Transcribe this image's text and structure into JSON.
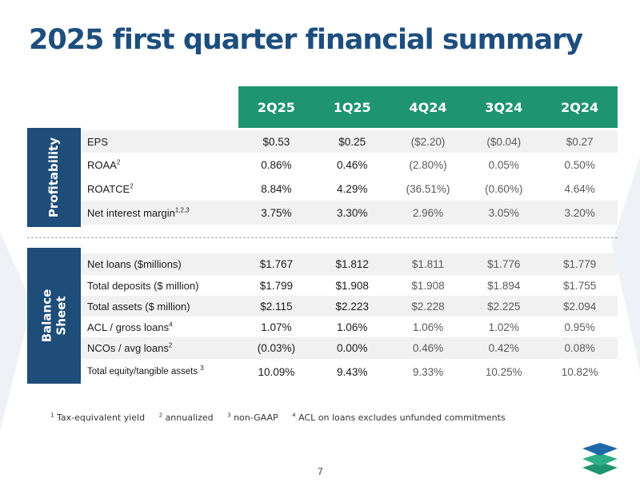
{
  "title": "2025 first quarter financial summary",
  "columns": [
    "2Q25",
    "1Q25",
    "4Q24",
    "3Q24",
    "2Q24"
  ],
  "sections": {
    "profitability": {
      "label": "Profitability",
      "rows": [
        {
          "label": "EPS",
          "sup": "",
          "values": [
            "$0.53",
            "$0.25",
            "($2.20)",
            "($0.04)",
            "$0.27"
          ]
        },
        {
          "label": "ROAA",
          "sup": "2",
          "values": [
            "0.86%",
            "0.46%",
            "(2.80%)",
            "0.05%",
            "0.50%"
          ]
        },
        {
          "label": "ROATCE",
          "sup": "2",
          "values": [
            "8.84%",
            "4.29%",
            "(36.51%)",
            "(0.60%)",
            "4.64%"
          ]
        },
        {
          "label": "Net interest margin",
          "sup": "1,2,3",
          "values": [
            "3.75%",
            "3.30%",
            "2.96%",
            "3.05%",
            "3.20%"
          ]
        }
      ]
    },
    "balance_sheet": {
      "label": "Balance Sheet",
      "rows": [
        {
          "label": "Net loans ($millions)",
          "sup": "",
          "values": [
            "$1.767",
            "$1.812",
            "$1.811",
            "$1.776",
            "$1.779"
          ]
        },
        {
          "label": "Total deposits ($ million)",
          "sup": "",
          "values": [
            "$1.799",
            "$1.908",
            "$1.908",
            "$1.894",
            "$1.755"
          ]
        },
        {
          "label": "Total assets ($ million)",
          "sup": "",
          "values": [
            "$2.115",
            "$2.223",
            "$2.228",
            "$2.225",
            "$2.094"
          ]
        },
        {
          "label": "ACL / gross loans",
          "sup": "4",
          "values": [
            "1.07%",
            "1.06%",
            "1.06%",
            "1.02%",
            "0.95%"
          ]
        },
        {
          "label": "NCOs / avg loans",
          "sup": "2",
          "values": [
            "(0.03%)",
            "0.00%",
            "0.46%",
            "0.42%",
            "0.08%"
          ]
        },
        {
          "label": "Total equity/tangible assets",
          "sup": "3",
          "values": [
            "10.09%",
            "9.43%",
            "9.33%",
            "10.25%",
            "10.82%"
          ]
        }
      ]
    }
  },
  "footnotes": [
    {
      "num": "1",
      "text": "Tax-equivalent yield"
    },
    {
      "num": "2",
      "text": "annualized"
    },
    {
      "num": "3",
      "text": "non-GAAP"
    },
    {
      "num": "4",
      "text": "ACL on loans excludes unfunded commitments"
    }
  ],
  "page_number": "7",
  "colors": {
    "title": "#1d4e7e",
    "header": "#1f9470",
    "side": "#1e4d79"
  },
  "logo_icon": "layered-stack-icon"
}
